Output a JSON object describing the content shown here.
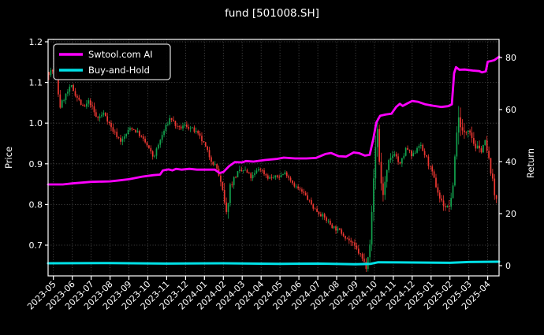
{
  "chart": {
    "title": "fund [501008.SH]",
    "legend": {
      "items": [
        {
          "label": "Swtool.com AI",
          "color": "#ff00ff"
        },
        {
          "label": "Buy-and-Hold",
          "color": "#00e0e6"
        }
      ]
    },
    "left_axis": {
      "label": "Price",
      "ticks": [
        0.7,
        0.8,
        0.9,
        1.0,
        1.1,
        1.2
      ],
      "lim": [
        0.6244,
        1.2058
      ]
    },
    "right_axis": {
      "label": "Return",
      "ticks": [
        0,
        20,
        40,
        60,
        80
      ],
      "lim": [
        -3.94,
        86.97
      ]
    },
    "x_axis": {
      "lim": [
        -0.28,
        23.6
      ],
      "tick_labels": [
        "2023-05",
        "2023-06",
        "2023-07",
        "2023-08",
        "2023-09",
        "2023-10",
        "2023-11",
        "2023-12",
        "2024-01",
        "2024-02",
        "2024-03",
        "2024-04",
        "2024-05",
        "2024-06",
        "2024-07",
        "2024-08",
        "2024-09",
        "2024-10",
        "2024-11",
        "2024-12",
        "2025-01",
        "2025-02",
        "2025-03",
        "2025-04"
      ]
    },
    "colors": {
      "background": "#000000",
      "frame": "#ffffff",
      "grid": "#7a7a7a",
      "text": "#ffffff"
    }
  },
  "chart_data": {
    "type": "candlestick",
    "title": "fund [501008.SH]",
    "xlabel": "",
    "ylabel_left": "Price",
    "ylabel_right": "Return",
    "grid": "dotted",
    "legend_position": "upper-left",
    "x_unit": "months since 2023-05 (0 = 2023-05 tick)",
    "candle_colors": {
      "up": "#12a24e",
      "down": "#ef3832"
    },
    "candles_per_month": 10,
    "price_close_anchors": [
      [
        -0.28,
        1.125
      ],
      [
        0.1,
        1.13
      ],
      [
        0.35,
        1.04
      ],
      [
        0.6,
        1.065
      ],
      [
        0.95,
        1.09
      ],
      [
        1.3,
        1.06
      ],
      [
        1.6,
        1.035
      ],
      [
        1.9,
        1.055
      ],
      [
        2.3,
        1.01
      ],
      [
        2.7,
        1.025
      ],
      [
        3.1,
        0.985
      ],
      [
        3.6,
        0.955
      ],
      [
        4.1,
        0.99
      ],
      [
        4.5,
        0.975
      ],
      [
        4.9,
        0.95
      ],
      [
        5.3,
        0.915
      ],
      [
        5.8,
        0.975
      ],
      [
        6.2,
        1.015
      ],
      [
        6.6,
        0.985
      ],
      [
        7.0,
        0.995
      ],
      [
        7.5,
        0.98
      ],
      [
        7.9,
        0.955
      ],
      [
        8.3,
        0.915
      ],
      [
        8.7,
        0.885
      ],
      [
        9.0,
        0.82
      ],
      [
        9.15,
        0.77
      ],
      [
        9.35,
        0.845
      ],
      [
        9.7,
        0.875
      ],
      [
        10.1,
        0.885
      ],
      [
        10.5,
        0.865
      ],
      [
        10.9,
        0.89
      ],
      [
        11.4,
        0.865
      ],
      [
        11.9,
        0.868
      ],
      [
        12.3,
        0.878
      ],
      [
        12.8,
        0.845
      ],
      [
        13.3,
        0.825
      ],
      [
        13.8,
        0.79
      ],
      [
        14.3,
        0.77
      ],
      [
        14.8,
        0.745
      ],
      [
        15.3,
        0.73
      ],
      [
        15.8,
        0.705
      ],
      [
        16.2,
        0.68
      ],
      [
        16.55,
        0.648
      ],
      [
        16.8,
        0.72
      ],
      [
        17.0,
        0.9
      ],
      [
        17.15,
        1.0
      ],
      [
        17.3,
        0.87
      ],
      [
        17.45,
        0.825
      ],
      [
        17.75,
        0.9
      ],
      [
        18.05,
        0.93
      ],
      [
        18.35,
        0.895
      ],
      [
        18.7,
        0.94
      ],
      [
        19.0,
        0.915
      ],
      [
        19.35,
        0.95
      ],
      [
        19.7,
        0.92
      ],
      [
        20.1,
        0.87
      ],
      [
        20.5,
        0.81
      ],
      [
        20.85,
        0.79
      ],
      [
        21.1,
        0.81
      ],
      [
        21.35,
        0.98
      ],
      [
        21.5,
        1.02
      ],
      [
        21.7,
        0.965
      ],
      [
        22.0,
        0.995
      ],
      [
        22.3,
        0.945
      ],
      [
        22.6,
        0.93
      ],
      [
        22.85,
        0.955
      ],
      [
        23.1,
        0.9
      ],
      [
        23.3,
        0.845
      ],
      [
        23.42,
        0.8
      ],
      [
        23.6,
        0.87
      ]
    ],
    "candle_volatility_anchors": [
      [
        -0.28,
        0.014
      ],
      [
        1,
        0.011
      ],
      [
        3,
        0.01
      ],
      [
        5,
        0.009
      ],
      [
        6.5,
        0.01
      ],
      [
        8.5,
        0.011
      ],
      [
        9.1,
        0.022
      ],
      [
        9.5,
        0.014
      ],
      [
        10.5,
        0.01
      ],
      [
        12,
        0.008
      ],
      [
        14,
        0.009
      ],
      [
        16,
        0.011
      ],
      [
        16.8,
        0.02
      ],
      [
        17.1,
        0.035
      ],
      [
        17.4,
        0.025
      ],
      [
        18,
        0.013
      ],
      [
        19,
        0.011
      ],
      [
        20.3,
        0.013
      ],
      [
        21.1,
        0.018
      ],
      [
        21.4,
        0.035
      ],
      [
        21.8,
        0.02
      ],
      [
        22.5,
        0.015
      ],
      [
        23.1,
        0.013
      ],
      [
        23.45,
        0.018
      ],
      [
        23.6,
        0.012
      ]
    ],
    "series": [
      {
        "name": "Swtool.com AI",
        "axis": "return",
        "color": "#ff00ff",
        "points": [
          [
            -0.28,
            31.2
          ],
          [
            0.5,
            31.2
          ],
          [
            1,
            31.6
          ],
          [
            2,
            32.2
          ],
          [
            3,
            32.4
          ],
          [
            3.5,
            32.8
          ],
          [
            4,
            33.2
          ],
          [
            4.7,
            34.2
          ],
          [
            5.3,
            34.8
          ],
          [
            5.65,
            35
          ],
          [
            5.8,
            36.6
          ],
          [
            6.1,
            37
          ],
          [
            6.3,
            36.6
          ],
          [
            6.5,
            37.2
          ],
          [
            6.8,
            36.9
          ],
          [
            7.2,
            37.2
          ],
          [
            7.6,
            36.9
          ],
          [
            8.2,
            36.9
          ],
          [
            8.55,
            36.9
          ],
          [
            8.8,
            35.6
          ],
          [
            9.0,
            36
          ],
          [
            9.3,
            38.2
          ],
          [
            9.6,
            39.8
          ],
          [
            10.0,
            39.7
          ],
          [
            10.2,
            40.2
          ],
          [
            10.6,
            40
          ],
          [
            11.2,
            40.6
          ],
          [
            11.8,
            41
          ],
          [
            12.2,
            41.5
          ],
          [
            12.8,
            41.2
          ],
          [
            13.4,
            41.2
          ],
          [
            13.9,
            41.4
          ],
          [
            14.4,
            42.9
          ],
          [
            14.7,
            43.3
          ],
          [
            15.1,
            42.1
          ],
          [
            15.5,
            41.9
          ],
          [
            15.9,
            43.5
          ],
          [
            16.2,
            43.2
          ],
          [
            16.5,
            42.3
          ],
          [
            16.75,
            42.6
          ],
          [
            16.95,
            49
          ],
          [
            17.1,
            55
          ],
          [
            17.3,
            57.6
          ],
          [
            17.6,
            58.1
          ],
          [
            17.9,
            58.4
          ],
          [
            18.15,
            61
          ],
          [
            18.35,
            62.2
          ],
          [
            18.5,
            61.4
          ],
          [
            18.75,
            62.4
          ],
          [
            19.0,
            63.3
          ],
          [
            19.3,
            63
          ],
          [
            19.7,
            62
          ],
          [
            20.1,
            61.5
          ],
          [
            20.55,
            61
          ],
          [
            20.9,
            61.3
          ],
          [
            21.1,
            62
          ],
          [
            21.22,
            74
          ],
          [
            21.32,
            76.3
          ],
          [
            21.5,
            75.3
          ],
          [
            21.8,
            75.4
          ],
          [
            22.2,
            75
          ],
          [
            22.55,
            74.8
          ],
          [
            22.7,
            74.3
          ],
          [
            22.9,
            74.7
          ],
          [
            23.0,
            78.4
          ],
          [
            23.15,
            78.6
          ],
          [
            23.35,
            79
          ],
          [
            23.6,
            80.3
          ]
        ]
      },
      {
        "name": "Buy-and-Hold",
        "axis": "return",
        "color": "#00e0e6",
        "points": [
          [
            -0.28,
            0.9
          ],
          [
            3,
            1.0
          ],
          [
            6,
            0.8
          ],
          [
            9,
            0.9
          ],
          [
            12,
            0.7
          ],
          [
            14,
            0.8
          ],
          [
            16,
            0.5
          ],
          [
            16.8,
            0.7
          ],
          [
            17.2,
            1.3
          ],
          [
            19,
            1.2
          ],
          [
            21,
            1.1
          ],
          [
            22,
            1.4
          ],
          [
            23.6,
            1.5
          ]
        ]
      }
    ]
  }
}
